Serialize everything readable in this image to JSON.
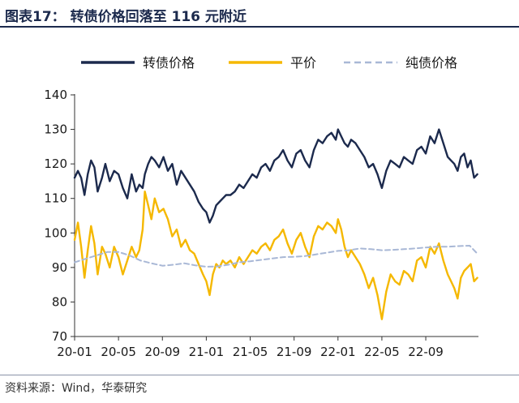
{
  "header": {
    "title": "图表17：  转债价格回落至 116 元附近"
  },
  "footer": {
    "source": "资料来源：Wind，华泰研究"
  },
  "chart_data": {
    "type": "line",
    "title": "转债价格回落至 116 元附近",
    "xlabel": "",
    "ylabel": "",
    "ylim": [
      70,
      140
    ],
    "yticks": [
      70,
      80,
      90,
      100,
      110,
      120,
      130,
      140
    ],
    "xlim": [
      0,
      36.8
    ],
    "xticks": [
      {
        "label": "20-01",
        "x": 0
      },
      {
        "label": "20-05",
        "x": 4
      },
      {
        "label": "20-09",
        "x": 8
      },
      {
        "label": "21-01",
        "x": 12
      },
      {
        "label": "21-05",
        "x": 16
      },
      {
        "label": "21-09",
        "x": 20
      },
      {
        "label": "22-01",
        "x": 24
      },
      {
        "label": "22-05",
        "x": 28
      },
      {
        "label": "22-09",
        "x": 32
      }
    ],
    "grid": false,
    "legend_position": "top",
    "x_unit": "months since 2020-01",
    "series": [
      {
        "name": "转债价格",
        "color": "#1c2a4d",
        "style": "solid",
        "x": [
          0,
          0.3,
          0.6,
          0.9,
          1.2,
          1.5,
          1.8,
          2.1,
          2.5,
          2.8,
          3.2,
          3.6,
          4.0,
          4.4,
          4.8,
          5.2,
          5.6,
          5.9,
          6.2,
          6.4,
          6.7,
          7.0,
          7.3,
          7.7,
          8.1,
          8.5,
          8.9,
          9.3,
          9.7,
          10.1,
          10.5,
          10.9,
          11.3,
          11.7,
          12.0,
          12.3,
          12.6,
          12.9,
          13.2,
          13.5,
          13.8,
          14.2,
          14.6,
          15.0,
          15.4,
          15.8,
          16.2,
          16.6,
          17.0,
          17.4,
          17.8,
          18.2,
          18.6,
          19.0,
          19.4,
          19.8,
          20.2,
          20.6,
          21.0,
          21.4,
          21.8,
          22.2,
          22.6,
          23.0,
          23.4,
          23.8,
          24.0,
          24.3,
          24.6,
          24.9,
          25.2,
          25.6,
          26.0,
          26.4,
          26.8,
          27.2,
          27.6,
          28.0,
          28.4,
          28.8,
          29.2,
          29.6,
          30.0,
          30.4,
          30.8,
          31.2,
          31.6,
          32.0,
          32.4,
          32.8,
          33.2,
          33.6,
          34.0,
          34.3,
          34.6,
          34.9,
          35.2,
          35.5,
          35.8,
          36.1,
          36.4,
          36.7
        ],
        "values": [
          116,
          118,
          116,
          111,
          117,
          121,
          119,
          112,
          116,
          120,
          115,
          118,
          117,
          113,
          110,
          117,
          112,
          114,
          113,
          117,
          120,
          122,
          121,
          119,
          122,
          118,
          120,
          114,
          118,
          116,
          114,
          112,
          109,
          107,
          106,
          103,
          105,
          108,
          109,
          110,
          111,
          111,
          112,
          114,
          113,
          115,
          117,
          116,
          119,
          120,
          118,
          121,
          122,
          124,
          121,
          119,
          123,
          124,
          121,
          119,
          124,
          127,
          126,
          128,
          129,
          127,
          130,
          128,
          126,
          125,
          127,
          126,
          124,
          122,
          119,
          120,
          117,
          113,
          118,
          121,
          120,
          119,
          122,
          121,
          120,
          124,
          125,
          123,
          128,
          126,
          130,
          126,
          122,
          121,
          120,
          118,
          122,
          123,
          119,
          121,
          116,
          117
        ]
      },
      {
        "name": "平价",
        "color": "#f5b800",
        "style": "solid",
        "x": [
          0,
          0.3,
          0.6,
          0.9,
          1.2,
          1.5,
          1.8,
          2.1,
          2.5,
          2.8,
          3.2,
          3.6,
          4.0,
          4.4,
          4.8,
          5.2,
          5.6,
          5.9,
          6.2,
          6.4,
          6.7,
          7.0,
          7.3,
          7.7,
          8.1,
          8.5,
          8.9,
          9.3,
          9.7,
          10.1,
          10.5,
          10.9,
          11.3,
          11.7,
          12.0,
          12.3,
          12.6,
          12.9,
          13.2,
          13.5,
          13.8,
          14.2,
          14.6,
          15.0,
          15.4,
          15.8,
          16.2,
          16.6,
          17.0,
          17.4,
          17.8,
          18.2,
          18.6,
          19.0,
          19.4,
          19.8,
          20.2,
          20.6,
          21.0,
          21.4,
          21.8,
          22.2,
          22.6,
          23.0,
          23.4,
          23.8,
          24.0,
          24.3,
          24.6,
          24.9,
          25.2,
          25.6,
          26.0,
          26.4,
          26.8,
          27.2,
          27.6,
          28.0,
          28.4,
          28.8,
          29.2,
          29.6,
          30.0,
          30.4,
          30.8,
          31.2,
          31.6,
          32.0,
          32.4,
          32.8,
          33.2,
          33.6,
          34.0,
          34.3,
          34.6,
          34.9,
          35.2,
          35.5,
          35.8,
          36.1,
          36.4,
          36.7
        ],
        "values": [
          98,
          103,
          96,
          87,
          95,
          102,
          97,
          88,
          96,
          94,
          90,
          96,
          93,
          88,
          92,
          96,
          93,
          95,
          101,
          112,
          108,
          104,
          110,
          106,
          107,
          104,
          99,
          101,
          96,
          98,
          95,
          94,
          91,
          88,
          86,
          82,
          88,
          91,
          90,
          92,
          91,
          92,
          90,
          93,
          91,
          93,
          95,
          94,
          96,
          97,
          95,
          98,
          99,
          101,
          97,
          94,
          98,
          100,
          96,
          93,
          99,
          102,
          101,
          103,
          102,
          100,
          104,
          101,
          96,
          93,
          95,
          93,
          91,
          88,
          84,
          87,
          82,
          75,
          83,
          88,
          86,
          85,
          89,
          88,
          86,
          92,
          93,
          90,
          96,
          94,
          97,
          92,
          88,
          86,
          84,
          81,
          87,
          89,
          90,
          91,
          86,
          87
        ]
      },
      {
        "name": "纯债价格",
        "color": "#a9b8d6",
        "style": "dashed",
        "x": [
          0,
          1,
          2,
          3,
          4,
          5,
          6,
          7,
          8,
          9,
          10,
          11,
          12,
          13,
          14,
          15,
          16,
          17,
          18,
          19,
          20,
          21,
          22,
          23,
          24,
          25,
          26,
          27,
          28,
          29,
          30,
          31,
          32,
          33,
          34,
          35,
          36,
          36.7
        ],
        "values": [
          91.5,
          92.5,
          93.5,
          94.5,
          94.5,
          93.5,
          92,
          91.2,
          90.5,
          90.8,
          91.2,
          90.6,
          90.2,
          90.3,
          90.8,
          91.5,
          91.8,
          92.2,
          92.6,
          93,
          93.1,
          93.3,
          93.8,
          94.3,
          94.8,
          95,
          95.5,
          95.3,
          95,
          95.1,
          95.3,
          95.5,
          95.8,
          96,
          96,
          96.2,
          96.3,
          94
        ]
      }
    ]
  }
}
